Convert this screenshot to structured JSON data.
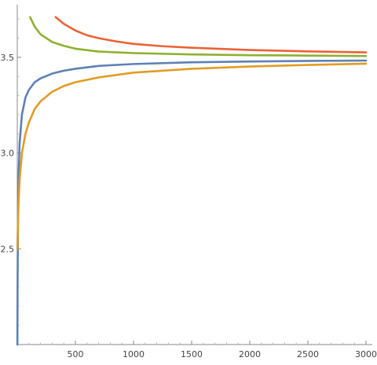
{
  "chart_data": {
    "type": "line",
    "title": "",
    "xlabel": "",
    "ylabel": "",
    "xlim": [
      0,
      3000
    ],
    "ylim": [
      2.0,
      3.75
    ],
    "grid": false,
    "legend": "none",
    "x_ticks": [
      500,
      1000,
      1500,
      2000,
      2500,
      3000
    ],
    "x_tick_labels": [
      "500",
      "1000",
      "1500",
      "2000",
      "2500",
      "3000"
    ],
    "y_ticks": [
      2.5,
      3.0,
      3.5
    ],
    "y_tick_labels": [
      "2.5",
      "3.0",
      "3.5"
    ],
    "series": [
      {
        "color": "#5e81b5",
        "x": [
          1,
          3,
          6,
          10,
          20,
          40,
          70,
          100,
          150,
          200,
          300,
          400,
          500,
          700,
          1000,
          1500,
          2000,
          2500,
          3000
        ],
        "y": [
          2.0,
          2.35,
          2.65,
          2.85,
          3.05,
          3.2,
          3.29,
          3.33,
          3.37,
          3.39,
          3.415,
          3.43,
          3.44,
          3.455,
          3.465,
          3.474,
          3.478,
          3.481,
          3.483
        ]
      },
      {
        "color": "#e19c24",
        "x": [
          1,
          5,
          10,
          20,
          40,
          70,
          100,
          150,
          200,
          300,
          400,
          500,
          700,
          1000,
          1500,
          2000,
          2500,
          3000
        ],
        "y": [
          2.5,
          2.62,
          2.72,
          2.86,
          3.0,
          3.1,
          3.16,
          3.23,
          3.27,
          3.32,
          3.35,
          3.37,
          3.395,
          3.42,
          3.44,
          3.452,
          3.46,
          3.467
        ]
      },
      {
        "color": "#8fb032",
        "x": [
          110,
          150,
          200,
          250,
          300,
          400,
          500,
          700,
          1000,
          1500,
          2000,
          2500,
          3000
        ],
        "y": [
          3.71,
          3.66,
          3.62,
          3.6,
          3.58,
          3.56,
          3.545,
          3.53,
          3.522,
          3.515,
          3.511,
          3.509,
          3.507
        ]
      },
      {
        "color": "#eb6235",
        "x": [
          330,
          400,
          500,
          600,
          700,
          850,
          1000,
          1250,
          1500,
          2000,
          2500,
          3000
        ],
        "y": [
          3.71,
          3.675,
          3.64,
          3.615,
          3.6,
          3.583,
          3.57,
          3.558,
          3.55,
          3.538,
          3.531,
          3.526
        ]
      }
    ]
  }
}
